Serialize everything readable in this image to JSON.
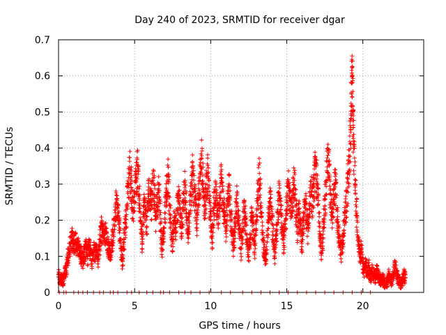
{
  "chart_data": {
    "type": "scatter",
    "title": "Day 240 of 2023, SRMTID for receiver dgar",
    "xlabel": "GPS time / hours",
    "ylabel": "SRMTID / TECUs",
    "xlim": [
      0,
      24
    ],
    "ylim": [
      0,
      0.7
    ],
    "xticks": [
      "0",
      "5",
      "10",
      "15",
      "20"
    ],
    "xtick_values": [
      0,
      5,
      10,
      15,
      20
    ],
    "yticks": [
      "0",
      "0.1",
      "0.2",
      "0.3",
      "0.4",
      "0.5",
      "0.6",
      "0.7"
    ],
    "ytick_values": [
      0,
      0.1,
      0.2,
      0.3,
      0.4,
      0.5,
      0.6,
      0.7
    ],
    "grid": true,
    "marker": "+",
    "color": "#ff0000",
    "data_extent_hours": [
      0,
      22.8
    ],
    "series": [
      {
        "name": "SRMTID",
        "points": [
          [
            0.0,
            0.05
          ],
          [
            0.1,
            0.03
          ],
          [
            0.2,
            0.04
          ],
          [
            0.3,
            0.03
          ],
          [
            0.4,
            0.05
          ],
          [
            0.5,
            0.06
          ],
          [
            0.6,
            0.09
          ],
          [
            0.7,
            0.12
          ],
          [
            0.8,
            0.14
          ],
          [
            0.9,
            0.15
          ],
          [
            1.0,
            0.13
          ],
          [
            1.1,
            0.14
          ],
          [
            1.2,
            0.12
          ],
          [
            1.3,
            0.13
          ],
          [
            1.4,
            0.11
          ],
          [
            1.5,
            0.1
          ],
          [
            1.6,
            0.09
          ],
          [
            1.7,
            0.11
          ],
          [
            1.8,
            0.12
          ],
          [
            1.9,
            0.1
          ],
          [
            2.0,
            0.13
          ],
          [
            2.1,
            0.11
          ],
          [
            2.2,
            0.09
          ],
          [
            2.3,
            0.12
          ],
          [
            2.4,
            0.1
          ],
          [
            2.5,
            0.12
          ],
          [
            2.6,
            0.09
          ],
          [
            2.7,
            0.13
          ],
          [
            2.8,
            0.18
          ],
          [
            2.9,
            0.16
          ],
          [
            3.0,
            0.15
          ],
          [
            3.1,
            0.17
          ],
          [
            3.2,
            0.14
          ],
          [
            3.3,
            0.12
          ],
          [
            3.4,
            0.11
          ],
          [
            3.5,
            0.13
          ],
          [
            3.6,
            0.16
          ],
          [
            3.7,
            0.2
          ],
          [
            3.8,
            0.25
          ],
          [
            3.9,
            0.22
          ],
          [
            4.0,
            0.18
          ],
          [
            4.1,
            0.12
          ],
          [
            4.2,
            0.09
          ],
          [
            4.3,
            0.14
          ],
          [
            4.4,
            0.19
          ],
          [
            4.5,
            0.24
          ],
          [
            4.6,
            0.3
          ],
          [
            4.7,
            0.34
          ],
          [
            4.8,
            0.28
          ],
          [
            4.9,
            0.22
          ],
          [
            5.0,
            0.25
          ],
          [
            5.1,
            0.31
          ],
          [
            5.2,
            0.35
          ],
          [
            5.3,
            0.27
          ],
          [
            5.4,
            0.2
          ],
          [
            5.5,
            0.14
          ],
          [
            5.6,
            0.24
          ],
          [
            5.7,
            0.22
          ],
          [
            5.8,
            0.18
          ],
          [
            5.9,
            0.26
          ],
          [
            6.0,
            0.28
          ],
          [
            6.1,
            0.24
          ],
          [
            6.2,
            0.31
          ],
          [
            6.3,
            0.27
          ],
          [
            6.4,
            0.21
          ],
          [
            6.5,
            0.25
          ],
          [
            6.6,
            0.3
          ],
          [
            6.7,
            0.19
          ],
          [
            6.8,
            0.12
          ],
          [
            6.9,
            0.17
          ],
          [
            7.0,
            0.22
          ],
          [
            7.1,
            0.27
          ],
          [
            7.2,
            0.32
          ],
          [
            7.3,
            0.24
          ],
          [
            7.4,
            0.16
          ],
          [
            7.5,
            0.14
          ],
          [
            7.6,
            0.2
          ],
          [
            7.7,
            0.18
          ],
          [
            7.8,
            0.23
          ],
          [
            7.9,
            0.26
          ],
          [
            8.0,
            0.22
          ],
          [
            8.1,
            0.18
          ],
          [
            8.2,
            0.25
          ],
          [
            8.3,
            0.29
          ],
          [
            8.4,
            0.23
          ],
          [
            8.5,
            0.17
          ],
          [
            8.6,
            0.21
          ],
          [
            8.7,
            0.27
          ],
          [
            8.8,
            0.33
          ],
          [
            8.9,
            0.28
          ],
          [
            9.0,
            0.24
          ],
          [
            9.1,
            0.19
          ],
          [
            9.2,
            0.26
          ],
          [
            9.3,
            0.31
          ],
          [
            9.4,
            0.37
          ],
          [
            9.5,
            0.29
          ],
          [
            9.6,
            0.22
          ],
          [
            9.7,
            0.28
          ],
          [
            9.8,
            0.33
          ],
          [
            9.9,
            0.26
          ],
          [
            10.0,
            0.2
          ],
          [
            10.1,
            0.15
          ],
          [
            10.2,
            0.22
          ],
          [
            10.3,
            0.28
          ],
          [
            10.4,
            0.24
          ],
          [
            10.5,
            0.19
          ],
          [
            10.6,
            0.26
          ],
          [
            10.7,
            0.31
          ],
          [
            10.8,
            0.25
          ],
          [
            10.9,
            0.21
          ],
          [
            11.0,
            0.18
          ],
          [
            11.1,
            0.24
          ],
          [
            11.2,
            0.29
          ],
          [
            11.3,
            0.22
          ],
          [
            11.4,
            0.17
          ],
          [
            11.5,
            0.13
          ],
          [
            11.6,
            0.19
          ],
          [
            11.7,
            0.26
          ],
          [
            11.8,
            0.21
          ],
          [
            11.9,
            0.16
          ],
          [
            12.0,
            0.12
          ],
          [
            12.1,
            0.17
          ],
          [
            12.2,
            0.23
          ],
          [
            12.3,
            0.19
          ],
          [
            12.4,
            0.14
          ],
          [
            12.5,
            0.1
          ],
          [
            12.6,
            0.15
          ],
          [
            12.7,
            0.21
          ],
          [
            12.8,
            0.17
          ],
          [
            12.9,
            0.13
          ],
          [
            13.0,
            0.2
          ],
          [
            13.1,
            0.27
          ],
          [
            13.2,
            0.33
          ],
          [
            13.3,
            0.24
          ],
          [
            13.4,
            0.16
          ],
          [
            13.5,
            0.12
          ],
          [
            13.6,
            0.09
          ],
          [
            13.7,
            0.14
          ],
          [
            13.8,
            0.2
          ],
          [
            13.9,
            0.26
          ],
          [
            14.0,
            0.21
          ],
          [
            14.1,
            0.16
          ],
          [
            14.2,
            0.1
          ],
          [
            14.3,
            0.15
          ],
          [
            14.4,
            0.22
          ],
          [
            14.5,
            0.27
          ],
          [
            14.6,
            0.23
          ],
          [
            14.7,
            0.18
          ],
          [
            14.8,
            0.13
          ],
          [
            14.9,
            0.19
          ],
          [
            15.0,
            0.25
          ],
          [
            15.1,
            0.3
          ],
          [
            15.2,
            0.26
          ],
          [
            15.3,
            0.21
          ],
          [
            15.4,
            0.27
          ],
          [
            15.5,
            0.31
          ],
          [
            15.6,
            0.24
          ],
          [
            15.7,
            0.18
          ],
          [
            15.8,
            0.22
          ],
          [
            15.9,
            0.17
          ],
          [
            16.0,
            0.14
          ],
          [
            16.1,
            0.2
          ],
          [
            16.2,
            0.25
          ],
          [
            16.3,
            0.21
          ],
          [
            16.4,
            0.17
          ],
          [
            16.5,
            0.23
          ],
          [
            16.6,
            0.28
          ],
          [
            16.7,
            0.24
          ],
          [
            16.8,
            0.3
          ],
          [
            16.9,
            0.36
          ],
          [
            17.0,
            0.29
          ],
          [
            17.1,
            0.22
          ],
          [
            17.2,
            0.15
          ],
          [
            17.3,
            0.11
          ],
          [
            17.4,
            0.17
          ],
          [
            17.5,
            0.24
          ],
          [
            17.6,
            0.31
          ],
          [
            17.7,
            0.38
          ],
          [
            17.8,
            0.32
          ],
          [
            17.9,
            0.25
          ],
          [
            18.0,
            0.21
          ],
          [
            18.1,
            0.27
          ],
          [
            18.2,
            0.3
          ],
          [
            18.3,
            0.23
          ],
          [
            18.4,
            0.17
          ],
          [
            18.5,
            0.13
          ],
          [
            18.6,
            0.11
          ],
          [
            18.7,
            0.16
          ],
          [
            18.8,
            0.2
          ],
          [
            18.9,
            0.24
          ],
          [
            19.0,
            0.29
          ],
          [
            19.1,
            0.36
          ],
          [
            19.2,
            0.45
          ],
          [
            19.25,
            0.55
          ],
          [
            19.3,
            0.6
          ],
          [
            19.35,
            0.5
          ],
          [
            19.4,
            0.4
          ],
          [
            19.5,
            0.3
          ],
          [
            19.6,
            0.22
          ],
          [
            19.7,
            0.15
          ],
          [
            19.8,
            0.1
          ],
          [
            19.9,
            0.12
          ],
          [
            20.0,
            0.08
          ],
          [
            20.1,
            0.06
          ],
          [
            20.2,
            0.08
          ],
          [
            20.3,
            0.05
          ],
          [
            20.4,
            0.07
          ],
          [
            20.5,
            0.04
          ],
          [
            20.6,
            0.06
          ],
          [
            20.7,
            0.05
          ],
          [
            20.8,
            0.04
          ],
          [
            20.9,
            0.06
          ],
          [
            21.0,
            0.05
          ],
          [
            21.1,
            0.04
          ],
          [
            21.2,
            0.03
          ],
          [
            21.3,
            0.04
          ],
          [
            21.4,
            0.03
          ],
          [
            21.5,
            0.02
          ],
          [
            21.6,
            0.03
          ],
          [
            21.7,
            0.05
          ],
          [
            21.8,
            0.04
          ],
          [
            21.9,
            0.03
          ],
          [
            22.0,
            0.05
          ],
          [
            22.1,
            0.07
          ],
          [
            22.2,
            0.06
          ],
          [
            22.3,
            0.04
          ],
          [
            22.4,
            0.03
          ],
          [
            22.5,
            0.02
          ],
          [
            22.6,
            0.03
          ],
          [
            22.7,
            0.05
          ],
          [
            22.8,
            0.04
          ]
        ],
        "zero_points_hours": [
          0.05,
          0.35,
          0.5,
          1.0,
          1.3,
          1.6,
          1.9,
          2.3,
          2.7,
          2.95,
          3.4,
          3.6,
          3.9,
          4.5,
          4.8,
          5.3,
          5.8,
          6.2,
          6.7,
          6.9,
          7.3,
          7.9,
          8.3,
          8.7,
          9.3,
          9.9,
          10.7,
          11.3,
          12.1,
          12.7,
          13.3,
          13.9,
          14.5,
          15.1,
          15.7,
          16.3,
          16.9,
          17.5,
          18.1,
          18.7,
          19.3,
          19.9,
          20.5
        ]
      }
    ]
  }
}
